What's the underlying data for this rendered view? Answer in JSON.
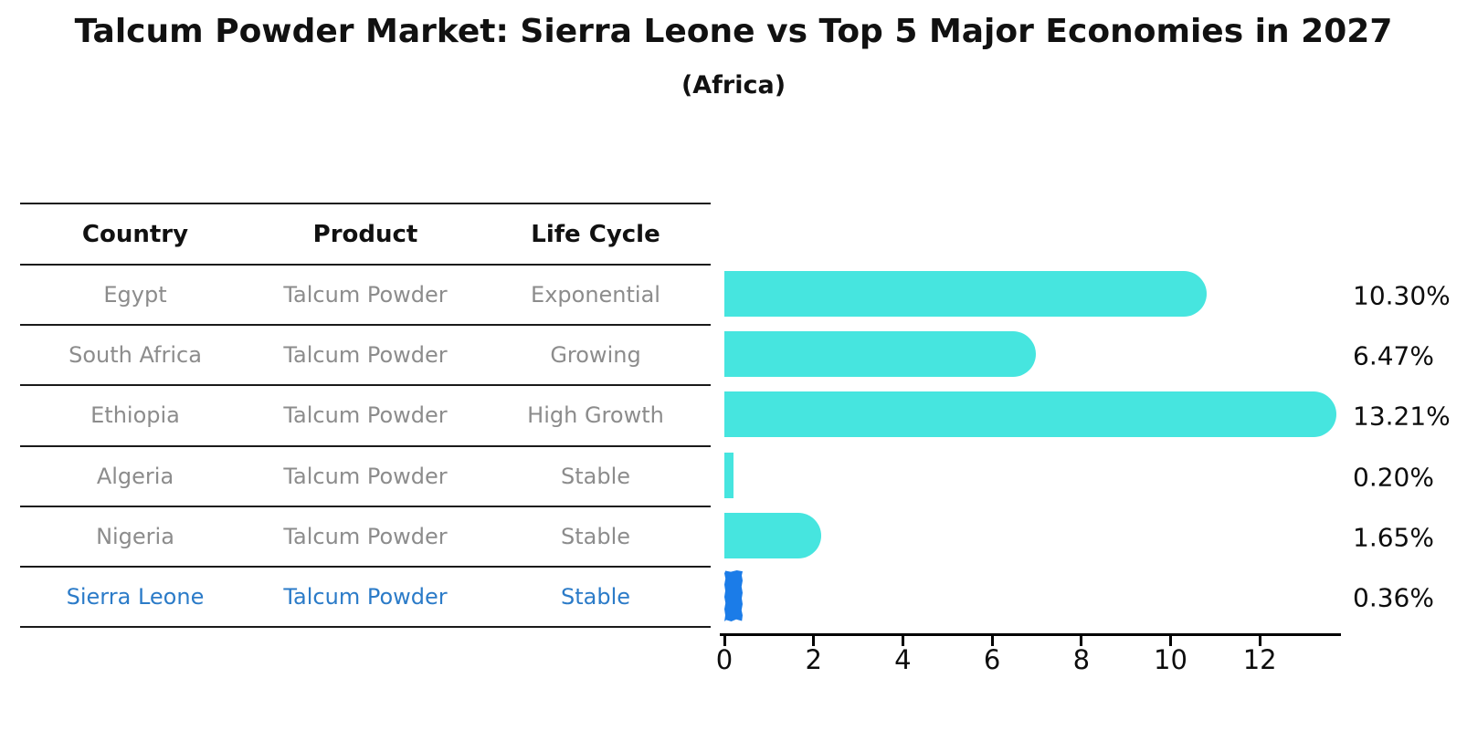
{
  "header": {
    "title": "Talcum Powder Market: Sierra Leone vs Top 5 Major Economies in 2027",
    "subtitle": "(Africa)"
  },
  "table": {
    "headers": [
      "Country",
      "Product",
      "Life Cycle"
    ],
    "rows": [
      {
        "country": "Egypt",
        "product": "Talcum Powder",
        "life_cycle": "Exponential"
      },
      {
        "country": "South Africa",
        "product": "Talcum Powder",
        "life_cycle": "Growing"
      },
      {
        "country": "Ethiopia",
        "product": "Talcum Powder",
        "life_cycle": "High Growth"
      },
      {
        "country": "Algeria",
        "product": "Talcum Powder",
        "life_cycle": "Stable"
      },
      {
        "country": "Nigeria",
        "product": "Talcum Powder",
        "life_cycle": "Stable"
      },
      {
        "country": "Sierra Leone",
        "product": "Talcum Powder",
        "life_cycle": "Stable"
      }
    ],
    "highlight_row_index": 5
  },
  "chart_data": {
    "type": "bar",
    "orientation": "horizontal",
    "title": "Talcum Powder Market: Sierra Leone vs Top 5 Major Economies in 2027",
    "subtitle": "(Africa)",
    "categories": [
      "Egypt",
      "South Africa",
      "Ethiopia",
      "Algeria",
      "Nigeria",
      "Sierra Leone"
    ],
    "values": [
      10.3,
      6.47,
      13.21,
      0.2,
      1.65,
      0.36
    ],
    "value_labels": [
      "10.30%",
      "6.47%",
      "13.21%",
      "0.20%",
      "1.65%",
      "0.36%"
    ],
    "xlabel": "",
    "ylabel": "",
    "xlim": [
      0,
      13.8
    ],
    "x_ticks": [
      0,
      2,
      4,
      6,
      8,
      10,
      12
    ],
    "grid": false,
    "legend": false,
    "highlight_index": 5,
    "highlight_style": "jagged"
  },
  "colors": {
    "bar_default": "#46e5df",
    "bar_highlight": "#1b7ce8",
    "row_text": "#8c8c8c",
    "highlight_text": "#2b7bc8",
    "header_text": "#111111",
    "axis": "#000000",
    "background": "#ffffff"
  }
}
